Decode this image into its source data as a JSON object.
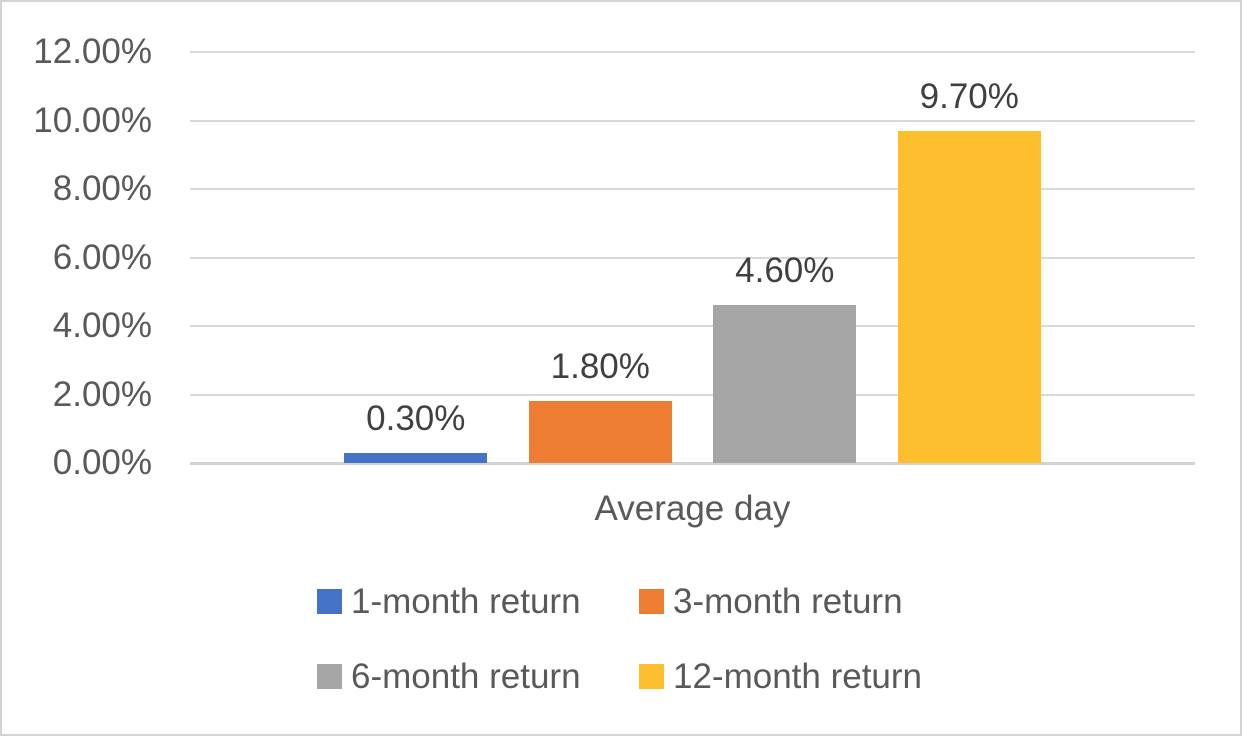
{
  "figure": {
    "background": "#FFFFFF",
    "border_color": "#D3D3D3"
  },
  "chart_data": {
    "type": "bar",
    "title": "",
    "xlabel": "Average day",
    "ylabel": "",
    "categories": [
      "Average day"
    ],
    "series": [
      {
        "name": "1-month return",
        "value": 0.3,
        "label": "0.30%",
        "color": "#4472C4"
      },
      {
        "name": "3-month return",
        "value": 1.8,
        "label": "1.80%",
        "color": "#ED7D31"
      },
      {
        "name": "6-month return",
        "value": 4.6,
        "label": "4.60%",
        "color": "#A5A5A5"
      },
      {
        "name": "12-month return",
        "value": 9.7,
        "label": "9.70%",
        "color": "#FDBF2D"
      }
    ],
    "unit": "%",
    "ylim": [
      0,
      12
    ],
    "y_step": 2,
    "y_tick_labels": [
      "0.00%",
      "2.00%",
      "4.00%",
      "6.00%",
      "8.00%",
      "10.00%",
      "12.00%"
    ],
    "grid": true,
    "gridline_color": "#D9D9D9",
    "axis_line_color": "#D2D2D2",
    "tick_label_color": "#595959",
    "data_label_color": "#404040",
    "legend_position": "bottom",
    "legend_rows": 2
  }
}
